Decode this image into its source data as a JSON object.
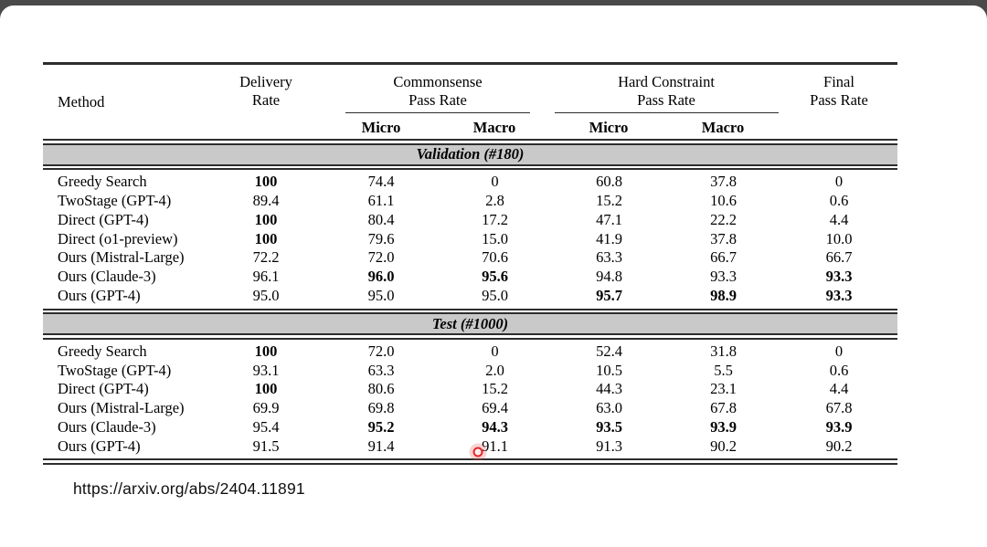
{
  "footer": {
    "source_url": "https://arxiv.org/abs/2404.11891"
  },
  "pointer": {
    "color": "#e0262b"
  },
  "colors": {
    "top_bar": "#4a4a4a",
    "section_band": "#c9c9c9",
    "rule": "#2d2d2d"
  },
  "chart_data": {
    "type": "table",
    "columns": [
      "Method",
      "Delivery Rate",
      "Commonsense Pass Rate (Micro)",
      "Commonsense Pass Rate (Macro)",
      "Hard Constraint Pass Rate (Micro)",
      "Hard Constraint Pass Rate (Macro)",
      "Final Pass Rate"
    ],
    "header": {
      "method": "Method",
      "groups": [
        {
          "label": "Delivery\nRate"
        },
        {
          "label": "Commonsense\nPass Rate",
          "sub": [
            "Micro",
            "Macro"
          ]
        },
        {
          "label": "Hard Constraint\nPass Rate",
          "sub": [
            "Micro",
            "Macro"
          ]
        },
        {
          "label": "Final\nPass Rate"
        }
      ]
    },
    "sections": [
      {
        "title": "Validation (#180)",
        "rows": [
          {
            "method": "Greedy Search",
            "cells": [
              {
                "v": "100",
                "b": true
              },
              {
                "v": "74.4"
              },
              {
                "v": "0"
              },
              {
                "v": "60.8"
              },
              {
                "v": "37.8"
              },
              {
                "v": "0"
              }
            ]
          },
          {
            "method": "TwoStage (GPT-4)",
            "cells": [
              {
                "v": "89.4"
              },
              {
                "v": "61.1"
              },
              {
                "v": "2.8"
              },
              {
                "v": "15.2"
              },
              {
                "v": "10.6"
              },
              {
                "v": "0.6"
              }
            ]
          },
          {
            "method": "Direct (GPT-4)",
            "cells": [
              {
                "v": "100",
                "b": true
              },
              {
                "v": "80.4"
              },
              {
                "v": "17.2"
              },
              {
                "v": "47.1"
              },
              {
                "v": "22.2"
              },
              {
                "v": "4.4"
              }
            ]
          },
          {
            "method": "Direct (o1-preview)",
            "cells": [
              {
                "v": "100",
                "b": true
              },
              {
                "v": "79.6"
              },
              {
                "v": "15.0"
              },
              {
                "v": "41.9"
              },
              {
                "v": "37.8"
              },
              {
                "v": "10.0"
              }
            ]
          },
          {
            "method": "Ours (Mistral-Large)",
            "cells": [
              {
                "v": "72.2"
              },
              {
                "v": "72.0"
              },
              {
                "v": "70.6"
              },
              {
                "v": "63.3"
              },
              {
                "v": "66.7"
              },
              {
                "v": "66.7"
              }
            ]
          },
          {
            "method": "Ours (Claude-3)",
            "cells": [
              {
                "v": "96.1"
              },
              {
                "v": "96.0",
                "b": true
              },
              {
                "v": "95.6",
                "b": true
              },
              {
                "v": "94.8"
              },
              {
                "v": "93.3"
              },
              {
                "v": "93.3",
                "b": true
              }
            ]
          },
          {
            "method": "Ours (GPT-4)",
            "cells": [
              {
                "v": "95.0"
              },
              {
                "v": "95.0"
              },
              {
                "v": "95.0"
              },
              {
                "v": "95.7",
                "b": true
              },
              {
                "v": "98.9",
                "b": true
              },
              {
                "v": "93.3",
                "b": true
              }
            ]
          }
        ]
      },
      {
        "title": "Test (#1000)",
        "rows": [
          {
            "method": "Greedy Search",
            "cells": [
              {
                "v": "100",
                "b": true
              },
              {
                "v": "72.0"
              },
              {
                "v": "0"
              },
              {
                "v": "52.4"
              },
              {
                "v": "31.8"
              },
              {
                "v": "0"
              }
            ]
          },
          {
            "method": "TwoStage (GPT-4)",
            "cells": [
              {
                "v": "93.1"
              },
              {
                "v": "63.3"
              },
              {
                "v": "2.0"
              },
              {
                "v": "10.5"
              },
              {
                "v": "5.5"
              },
              {
                "v": "0.6"
              }
            ]
          },
          {
            "method": "Direct (GPT-4)",
            "cells": [
              {
                "v": "100",
                "b": true
              },
              {
                "v": "80.6"
              },
              {
                "v": "15.2"
              },
              {
                "v": "44.3"
              },
              {
                "v": "23.1"
              },
              {
                "v": "4.4"
              }
            ]
          },
          {
            "method": "Ours (Mistral-Large)",
            "cells": [
              {
                "v": "69.9"
              },
              {
                "v": "69.8"
              },
              {
                "v": "69.4"
              },
              {
                "v": "63.0"
              },
              {
                "v": "67.8"
              },
              {
                "v": "67.8"
              }
            ]
          },
          {
            "method": "Ours (Claude-3)",
            "cells": [
              {
                "v": "95.4"
              },
              {
                "v": "95.2",
                "b": true
              },
              {
                "v": "94.3",
                "b": true
              },
              {
                "v": "93.5",
                "b": true
              },
              {
                "v": "93.9",
                "b": true
              },
              {
                "v": "93.9",
                "b": true
              }
            ]
          },
          {
            "method": "Ours (GPT-4)",
            "cells": [
              {
                "v": "91.5"
              },
              {
                "v": "91.4"
              },
              {
                "v": "91.1"
              },
              {
                "v": "91.3"
              },
              {
                "v": "90.2"
              },
              {
                "v": "90.2"
              }
            ]
          }
        ]
      }
    ]
  }
}
